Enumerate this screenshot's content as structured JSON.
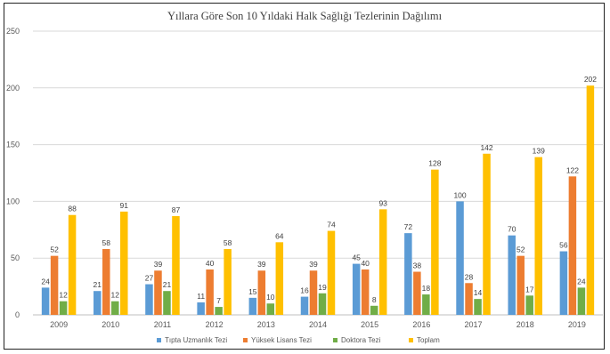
{
  "chart_data": {
    "type": "bar",
    "title": "Yıllara Göre Son 10 Yıldaki Halk Sağlığı Tezlerinin Dağılımı",
    "categories": [
      "2009",
      "2010",
      "2011",
      "2012",
      "2013",
      "2014",
      "2015",
      "2016",
      "2017",
      "2018",
      "2019"
    ],
    "ylim": [
      0,
      250
    ],
    "yticks": [
      0,
      50,
      100,
      150,
      200,
      250
    ],
    "grid": true,
    "legend_position": "bottom",
    "series": [
      {
        "name": "Tıpta Uzmanlık Tezi",
        "color": "#5b9bd5",
        "values": [
          24,
          21,
          27,
          11,
          15,
          16,
          45,
          72,
          100,
          70,
          56
        ]
      },
      {
        "name": "Yüksek Lisans Tezi",
        "color": "#ed7d31",
        "values": [
          52,
          58,
          39,
          40,
          39,
          39,
          40,
          38,
          28,
          52,
          122
        ]
      },
      {
        "name": "Doktora Tezi",
        "color": "#70ad47",
        "values": [
          12,
          12,
          21,
          7,
          10,
          19,
          8,
          18,
          14,
          17,
          24
        ]
      },
      {
        "name": "Toplam",
        "color": "#ffc000",
        "values": [
          88,
          91,
          87,
          58,
          64,
          74,
          93,
          128,
          142,
          139,
          202
        ]
      }
    ]
  }
}
